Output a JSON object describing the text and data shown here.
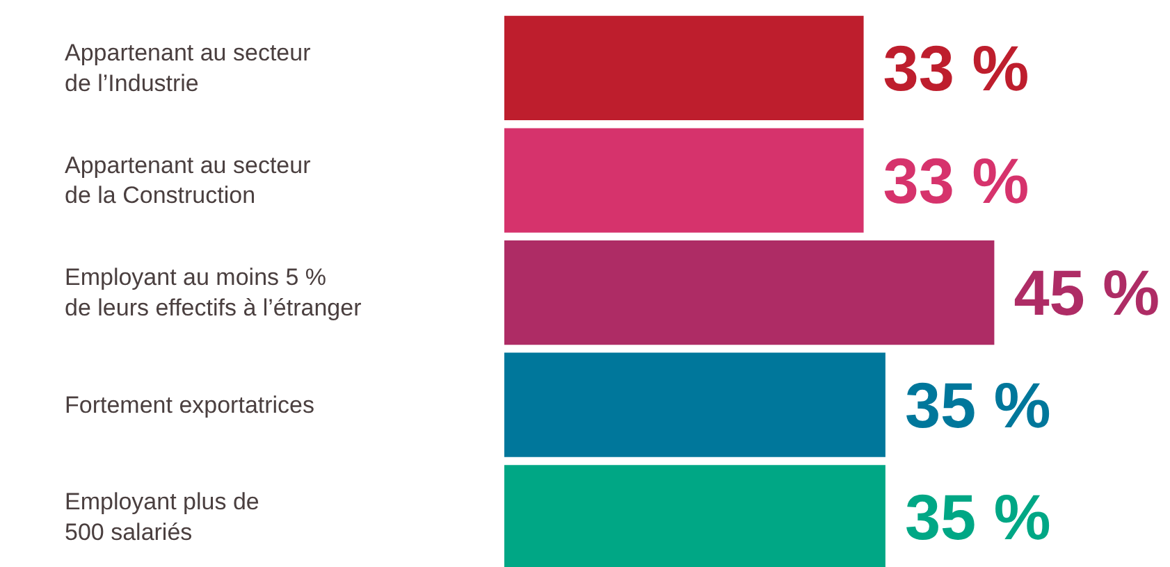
{
  "chart_data": {
    "type": "bar",
    "orientation": "horizontal",
    "categories": [
      "Appartenant au secteur\nde l’Industrie",
      "Appartenant au secteur\nde la Construction",
      "Employant au moins 5 %\nde leurs effectifs à l’étranger",
      "Fortement exportatrices",
      "Employant plus de\n500 salariés"
    ],
    "values": [
      33,
      33,
      45,
      35,
      35
    ],
    "colors": [
      "#be1e2d",
      "#d6336c",
      "#ae2c65",
      "#00779b",
      "#00a785"
    ],
    "value_labels": [
      "33 %",
      "33 %",
      "45 %",
      "35 %",
      "35 %"
    ],
    "tick_labels": false
  }
}
